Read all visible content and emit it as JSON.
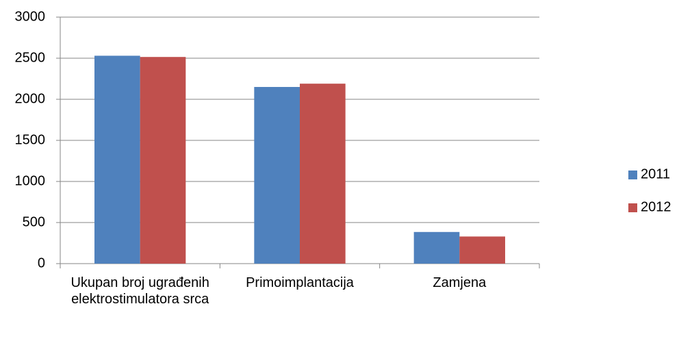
{
  "chart_data": {
    "type": "bar",
    "categories": [
      "Ukupan broj ugrađenih elektrostimulatora srca",
      "Primoimplantacija",
      "Zamjena"
    ],
    "series": [
      {
        "name": "2011",
        "color": "#4f81bd",
        "values": [
          2530,
          2150,
          385
        ]
      },
      {
        "name": "2012",
        "color": "#c0504d",
        "values": [
          2515,
          2190,
          330
        ]
      }
    ],
    "ylim": [
      0,
      3000
    ],
    "yticks": [
      0,
      500,
      1000,
      1500,
      2000,
      2500,
      3000
    ],
    "grid": true,
    "legend": "right"
  }
}
